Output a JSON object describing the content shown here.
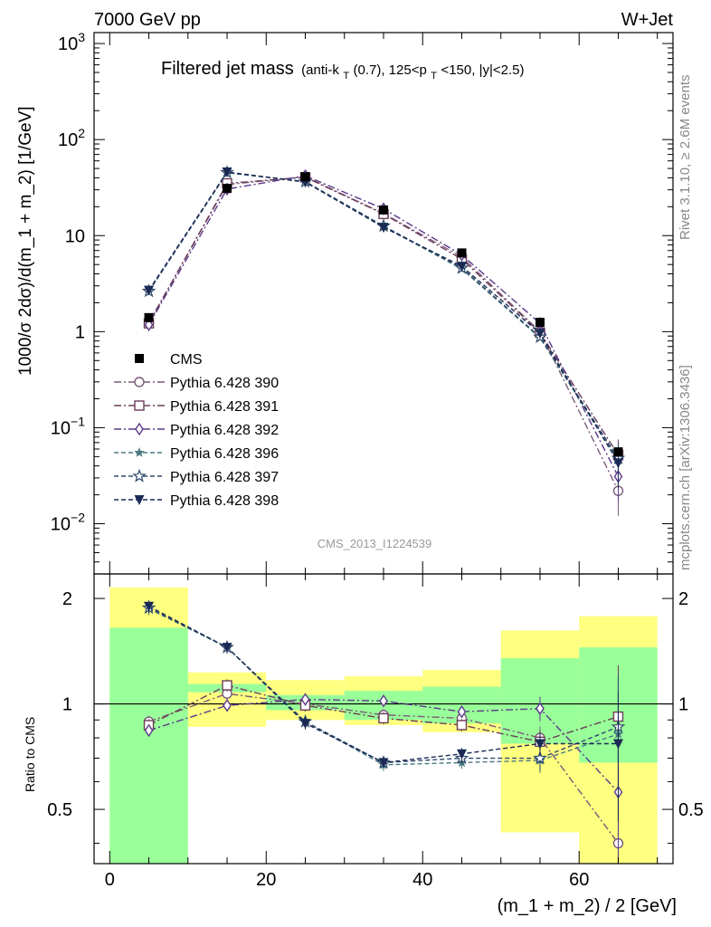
{
  "header": {
    "energy_label": "7000 GeV pp",
    "process_label": "W+Jet",
    "plot_title": "Filtered jet mass",
    "plot_title_cuts_prefix": "(anti-k",
    "plot_title_cuts_sub1": "T",
    "plot_title_cuts_mid": "(0.7), 125<p",
    "plot_title_cuts_sub2": "T",
    "plot_title_cuts_suffix": "<150, |y|<2.5)",
    "analysis_id": "CMS_2013_I1224539",
    "side_label_top": "Rivet 3.1.10, ≥ 2.6M events",
    "side_label_bottom": "mcplots.cern.ch [arXiv:1306.3436]"
  },
  "chart_data": {
    "type": "line",
    "x": [
      5,
      15,
      25,
      35,
      45,
      55,
      65
    ],
    "bin_edges": [
      0,
      10,
      20,
      30,
      40,
      50,
      60,
      70
    ],
    "main": {
      "ylabel": "1000/σ 2dσ)/d(m_1 + m_2) [1/GeV]",
      "yscale": "log",
      "ylim": [
        0.003,
        1300
      ],
      "y_ticks": [
        {
          "value": 0.01,
          "base": "10",
          "exp": "−2"
        },
        {
          "value": 0.1,
          "base": "10",
          "exp": "−1"
        },
        {
          "value": 1,
          "base": "1",
          "exp": ""
        },
        {
          "value": 10,
          "base": "10",
          "exp": ""
        },
        {
          "value": 100,
          "base": "10",
          "exp": "2"
        },
        {
          "value": 1000,
          "base": "10",
          "exp": "3"
        }
      ]
    },
    "ratio": {
      "ylabel": "Ratio to CMS",
      "yscale": "log",
      "ylim": [
        0.35,
        2.35
      ],
      "y_ticks": [
        {
          "value": 0.5,
          "label": "0.5"
        },
        {
          "value": 1,
          "label": "1"
        },
        {
          "value": 2,
          "label": "2"
        }
      ],
      "band_green": [
        [
          0.35,
          1.65
        ],
        [
          1.08,
          1.14
        ],
        [
          0.96,
          1.06
        ],
        [
          0.9,
          1.09
        ],
        [
          0.88,
          1.12
        ],
        [
          0.77,
          1.35
        ],
        [
          0.68,
          1.45
        ]
      ],
      "band_yellow": [
        [
          0.35,
          2.15
        ],
        [
          0.86,
          1.23
        ],
        [
          0.9,
          1.17
        ],
        [
          0.87,
          1.2
        ],
        [
          0.83,
          1.25
        ],
        [
          0.43,
          1.62
        ],
        [
          0.35,
          1.78
        ]
      ]
    },
    "xlabel": "(m_1 + m_2) / 2 [GeV]",
    "xlim": [
      -2,
      72
    ],
    "x_ticks": [
      0,
      20,
      40,
      60
    ],
    "series": [
      {
        "name": "CMS",
        "color": "#000000",
        "marker": "square-filled",
        "dash": "",
        "values": [
          1.4,
          31,
          41,
          18.5,
          6.6,
          1.25,
          0.056
        ],
        "ratio": [
          1,
          1,
          1,
          1,
          1,
          1,
          1
        ]
      },
      {
        "name": "Pythia 6.428 390",
        "color": "#7a5a7a",
        "marker": "circle-open",
        "dash": "8,3,2,3",
        "values": [
          1.24,
          34,
          41,
          17,
          6.0,
          1.0,
          0.022
        ],
        "ratio": [
          0.89,
          1.07,
          1.0,
          0.93,
          0.91,
          0.8,
          0.4
        ]
      },
      {
        "name": "Pythia 6.428 391",
        "color": "#6b3d58",
        "marker": "square-open",
        "dash": "8,3,2,3",
        "values": [
          1.22,
          35,
          40.5,
          16.8,
          5.7,
          0.98,
          0.052
        ],
        "ratio": [
          0.87,
          1.13,
          0.99,
          0.91,
          0.87,
          0.78,
          0.92
        ]
      },
      {
        "name": "Pythia 6.428 392",
        "color": "#5a3a8a",
        "marker": "diamond-open",
        "dash": "8,3,2,3",
        "values": [
          1.18,
          30.5,
          42,
          19,
          6.3,
          1.22,
          0.031
        ],
        "ratio": [
          0.84,
          0.99,
          1.03,
          1.02,
          0.95,
          0.97,
          0.56
        ]
      },
      {
        "name": "Pythia 6.428 396",
        "color": "#4a7a80",
        "marker": "star-filled",
        "dash": "5,3",
        "values": [
          2.62,
          45,
          36.5,
          12.4,
          4.5,
          0.86,
          0.046
        ],
        "ratio": [
          1.87,
          1.45,
          0.89,
          0.67,
          0.68,
          0.69,
          0.82
        ]
      },
      {
        "name": "Pythia 6.428 397",
        "color": "#2e4a6a",
        "marker": "star-open",
        "dash": "5,3",
        "values": [
          2.64,
          45.5,
          36.5,
          12.6,
          4.6,
          0.88,
          0.048
        ],
        "ratio": [
          1.88,
          1.45,
          0.89,
          0.68,
          0.7,
          0.7,
          0.86
        ]
      },
      {
        "name": "Pythia 6.428 398",
        "color": "#1a2a55",
        "marker": "tri-down-filled",
        "dash": "5,3",
        "values": [
          2.7,
          46,
          36,
          12.2,
          4.8,
          0.96,
          0.043
        ],
        "ratio": [
          1.9,
          1.45,
          0.88,
          0.68,
          0.72,
          0.77,
          0.77
        ]
      }
    ]
  }
}
